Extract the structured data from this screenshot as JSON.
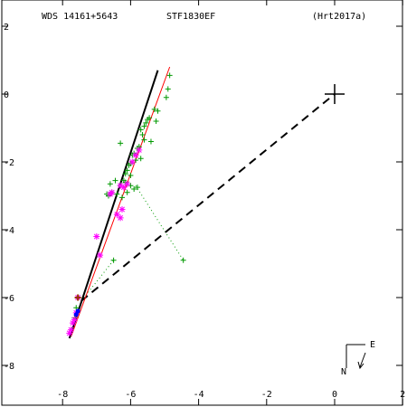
{
  "header": {
    "wds": "WDS 14161+5643",
    "discoverer": "STF1830EF",
    "reference": "(Hrt2017a)"
  },
  "orientation": {
    "north": "N",
    "east": "E"
  },
  "chart_data": {
    "type": "scatter",
    "xlim": [
      -9.0,
      2.0
    ],
    "ylim": [
      -9.3,
      2.0
    ],
    "x_axis_reversed": false,
    "y_axis_orientation": "negative values downward",
    "grid": false,
    "x_ticks": [
      -8,
      -6,
      -4,
      -2,
      0,
      2
    ],
    "y_ticks": [
      2,
      0,
      -2,
      -4,
      -6,
      -8
    ],
    "x_tick_labels": [
      "-8",
      "-6",
      "-4",
      "-2",
      "0",
      "2"
    ],
    "y_tick_labels": [
      "2",
      "0",
      "-2",
      "-4",
      "-6",
      "-8"
    ],
    "primary_position": [
      0,
      0
    ],
    "colors": {
      "green_obs": "#009900",
      "magenta_obs": "#ff00ff",
      "blue_obs": "#0000ff",
      "orbit_black": "#000000",
      "orbit_red": "#ff0000",
      "brown_marker": "#993300",
      "dotted": "#009900"
    },
    "green_plus_points": [
      [
        -4.45,
        -4.9
      ],
      [
        -6.5,
        -4.9
      ],
      [
        -7.6,
        -6.3
      ],
      [
        -7.65,
        -6.6
      ],
      [
        -6.65,
        -3.0
      ],
      [
        -6.7,
        -2.95
      ],
      [
        -6.6,
        -2.65
      ],
      [
        -6.55,
        -2.9
      ],
      [
        -6.45,
        -2.55
      ],
      [
        -6.4,
        -2.95
      ],
      [
        -6.3,
        -2.7
      ],
      [
        -6.25,
        -3.05
      ],
      [
        -6.2,
        -2.55
      ],
      [
        -6.15,
        -2.35
      ],
      [
        -6.1,
        -2.25
      ],
      [
        -6.05,
        -2.1
      ],
      [
        -6.0,
        -2.05
      ],
      [
        -5.95,
        -1.8
      ],
      [
        -5.9,
        -1.75
      ],
      [
        -5.85,
        -1.95
      ],
      [
        -5.8,
        -1.6
      ],
      [
        -5.75,
        -1.55
      ],
      [
        -5.7,
        -1.9
      ],
      [
        -5.9,
        -2.8
      ],
      [
        -5.8,
        -2.75
      ],
      [
        -6.0,
        -2.7
      ],
      [
        -6.3,
        -1.45
      ],
      [
        -6.1,
        -2.9
      ],
      [
        -6.15,
        -2.6
      ],
      [
        -6.0,
        -2.4
      ],
      [
        -5.65,
        -1.2
      ],
      [
        -5.6,
        -1.35
      ],
      [
        -5.55,
        -0.85
      ],
      [
        -5.5,
        -0.75
      ],
      [
        -5.45,
        -0.7
      ],
      [
        -5.4,
        -1.4
      ],
      [
        -5.3,
        -0.45
      ],
      [
        -5.25,
        -0.8
      ],
      [
        -5.2,
        -0.5
      ],
      [
        -4.95,
        -0.1
      ],
      [
        -4.9,
        0.15
      ],
      [
        -4.85,
        0.55
      ],
      [
        -5.7,
        -1.05
      ],
      [
        -5.6,
        -0.95
      ]
    ],
    "magenta_star_points": [
      [
        -6.6,
        -2.95
      ],
      [
        -6.55,
        -2.9
      ],
      [
        -6.3,
        -2.7
      ],
      [
        -6.2,
        -2.75
      ],
      [
        -6.4,
        -3.55
      ],
      [
        -6.3,
        -3.65
      ],
      [
        -6.25,
        -3.4
      ],
      [
        -6.1,
        -2.65
      ],
      [
        -5.95,
        -2.0
      ],
      [
        -5.85,
        -1.8
      ],
      [
        -5.75,
        -1.65
      ],
      [
        -7.0,
        -4.2
      ],
      [
        -6.9,
        -4.75
      ],
      [
        -7.55,
        -6.0
      ],
      [
        -7.6,
        -6.45
      ],
      [
        -7.65,
        -6.65
      ],
      [
        -7.7,
        -6.75
      ],
      [
        -7.75,
        -6.95
      ],
      [
        -7.8,
        -7.05
      ]
    ],
    "blue_points": [
      [
        -7.55,
        -6.4
      ],
      [
        -7.6,
        -6.5
      ]
    ],
    "brown_marker": [
      -7.55,
      -6.0
    ],
    "orbit_black": [
      [
        -7.8,
        -7.2
      ],
      [
        -5.2,
        0.7
      ]
    ],
    "orbit_red": [
      [
        -7.75,
        -7.15
      ],
      [
        -4.85,
        0.8
      ]
    ],
    "node_line": [
      [
        -7.45,
        -6.1
      ],
      [
        0,
        0
      ]
    ],
    "dotted_residual": [
      [
        -5.85,
        -2.7
      ],
      [
        -4.45,
        -4.9
      ]
    ],
    "dotted_residual_2": [
      [
        -7.45,
        -6.1
      ],
      [
        -6.5,
        -4.9
      ]
    ]
  }
}
